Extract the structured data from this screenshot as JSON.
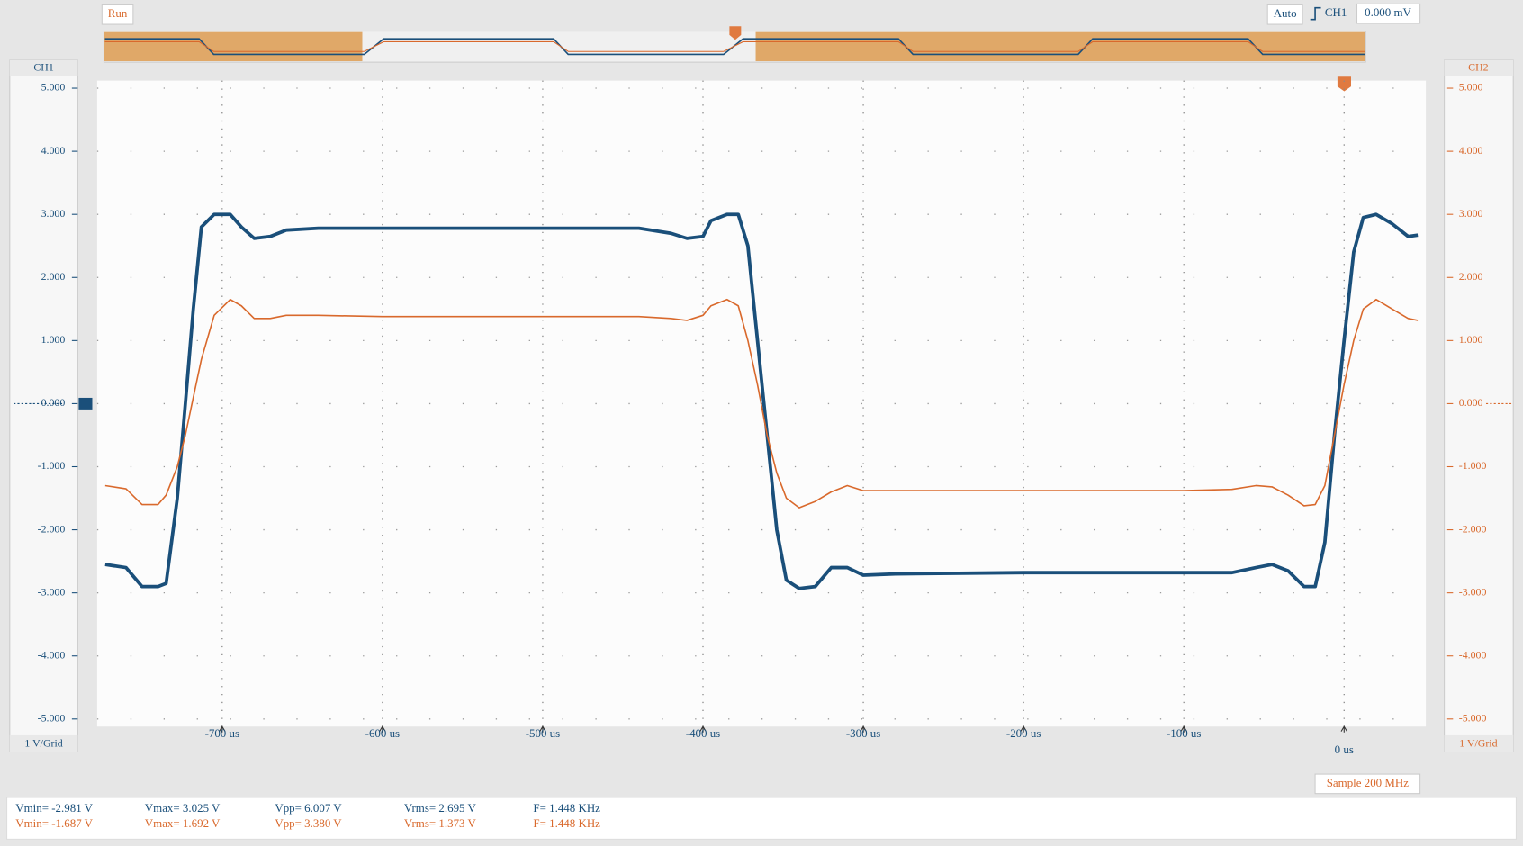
{
  "ui": {
    "run": "Run",
    "trigger_mode": "Auto",
    "trigger_source": "CH1",
    "trigger_level": "0.000 mV",
    "ch1_scale": "1 V/Grid",
    "ch2_scale": "1 V/Grid",
    "sample": "Sample 200 MHz"
  },
  "measurements": {
    "ch1": [
      "Vmin= -2.981 V",
      "Vmax= 3.025 V",
      "Vpp= 6.007 V",
      "Vrms= 2.695 V",
      "F= 1.448 KHz"
    ],
    "ch2": [
      "Vmin= -1.687 V",
      "Vmax= 1.692 V",
      "Vpp= 3.380 V",
      "Vrms= 1.373 V",
      "F= 1.448 KHz"
    ]
  },
  "chart_data": {
    "type": "line",
    "x": [
      -773,
      -760,
      -750,
      -740,
      -735,
      -728,
      -723,
      -718,
      -713,
      -705,
      -695,
      -688,
      -680,
      -670,
      -660,
      -640,
      -600,
      -500,
      -440,
      -420,
      -410,
      -400,
      -395,
      -385,
      -378,
      -372,
      -366,
      -360,
      -354,
      -348,
      -340,
      -330,
      -320,
      -310,
      -300,
      -280,
      -200,
      -100,
      -70,
      -55,
      -45,
      -35,
      -25,
      -18,
      -12,
      -6,
      0,
      6,
      12,
      20,
      30,
      40,
      46
    ],
    "series": [
      {
        "name": "CH1",
        "color": "#1a4f7a",
        "values": [
          -2.55,
          -2.6,
          -2.9,
          -2.9,
          -2.85,
          -1.5,
          0,
          1.5,
          2.8,
          3.0,
          3.0,
          2.8,
          2.62,
          2.65,
          2.75,
          2.78,
          2.78,
          2.78,
          2.78,
          2.7,
          2.62,
          2.65,
          2.9,
          3.0,
          3.0,
          2.5,
          1.0,
          -0.5,
          -2.0,
          -2.8,
          -2.93,
          -2.9,
          -2.6,
          -2.6,
          -2.72,
          -2.7,
          -2.68,
          -2.68,
          -2.68,
          -2.6,
          -2.55,
          -2.65,
          -2.9,
          -2.9,
          -2.2,
          -0.5,
          1.0,
          2.4,
          2.95,
          3.0,
          2.85,
          2.65,
          2.67
        ]
      },
      {
        "name": "CH2",
        "color": "#d9692c",
        "axis": "y2",
        "values": [
          -1.3,
          -1.35,
          -1.6,
          -1.6,
          -1.45,
          -1.0,
          -0.5,
          0.1,
          0.7,
          1.4,
          1.65,
          1.55,
          1.35,
          1.35,
          1.4,
          1.4,
          1.38,
          1.38,
          1.38,
          1.35,
          1.32,
          1.4,
          1.55,
          1.65,
          1.55,
          1.0,
          0.3,
          -0.5,
          -1.1,
          -1.5,
          -1.65,
          -1.55,
          -1.4,
          -1.3,
          -1.38,
          -1.38,
          -1.38,
          -1.38,
          -1.36,
          -1.3,
          -1.32,
          -1.45,
          -1.62,
          -1.6,
          -1.3,
          -0.5,
          0.3,
          1.0,
          1.5,
          1.65,
          1.5,
          1.35,
          1.32
        ]
      }
    ],
    "xlim": [
      -778,
      51
    ],
    "xticks": [
      {
        "value": -700,
        "label": "-700 us"
      },
      {
        "value": -600,
        "label": "-600 us"
      },
      {
        "value": -500,
        "label": "-500 us"
      },
      {
        "value": -400,
        "label": "-400 us"
      },
      {
        "value": -300,
        "label": "-300 us"
      },
      {
        "value": -200,
        "label": "-200 us"
      },
      {
        "value": -100,
        "label": "-100 us"
      },
      {
        "value": 0,
        "label": "0 us"
      }
    ],
    "ylim": [
      -5.12,
      5.12
    ],
    "yticks": [
      {
        "value": 5,
        "label": "5.000"
      },
      {
        "value": 4,
        "label": "4.000"
      },
      {
        "value": 3,
        "label": "3.000"
      },
      {
        "value": 2,
        "label": "2.000"
      },
      {
        "value": 1,
        "label": "1.000"
      },
      {
        "value": 0,
        "label": "0.000"
      },
      {
        "value": -1,
        "label": "-1.000"
      },
      {
        "value": -2,
        "label": "-2.000"
      },
      {
        "value": -3,
        "label": "-3.000"
      },
      {
        "value": -4,
        "label": "-4.000"
      },
      {
        "value": -5,
        "label": "-5.000"
      }
    ],
    "y2lim": [
      -5.12,
      5.12
    ],
    "y2ticks": [
      {
        "value": 5,
        "label": "5.000"
      },
      {
        "value": 4,
        "label": "4.000"
      },
      {
        "value": 3,
        "label": "3.000"
      },
      {
        "value": 2,
        "label": "2.000"
      },
      {
        "value": 1,
        "label": "1.000"
      },
      {
        "value": 0,
        "label": "0.000"
      },
      {
        "value": -1,
        "label": "-1.000"
      },
      {
        "value": -2,
        "label": "-2.000"
      },
      {
        "value": -3,
        "label": "-3.000"
      },
      {
        "value": -4,
        "label": "-4.000"
      },
      {
        "value": -5,
        "label": "-5.000"
      }
    ],
    "grid": true
  }
}
